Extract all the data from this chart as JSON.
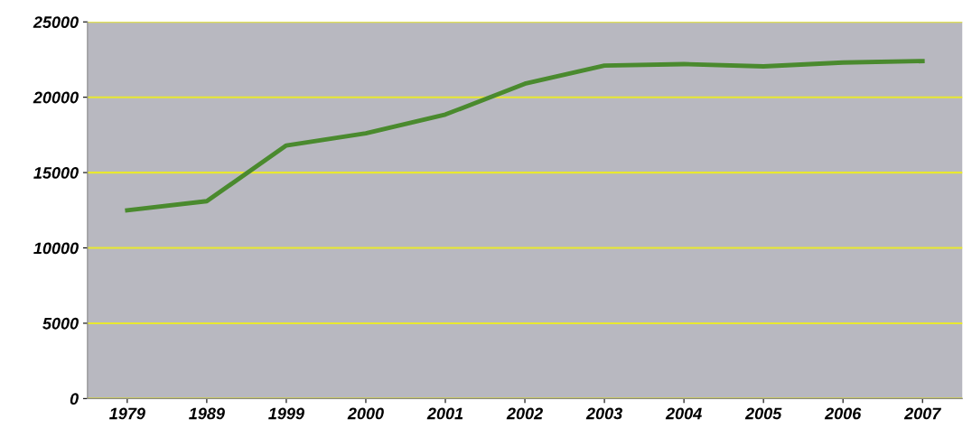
{
  "chart_data": {
    "type": "line",
    "categories": [
      "1979",
      "1989",
      "1999",
      "2000",
      "2001",
      "2002",
      "2003",
      "2004",
      "2005",
      "2006",
      "2007"
    ],
    "series": [
      {
        "color": "#4a8a2e",
        "values": [
          12500,
          13100,
          16800,
          17600,
          18850,
          20900,
          22100,
          22200,
          22050,
          22300,
          22400
        ]
      }
    ],
    "ylim": [
      0,
      25000
    ],
    "yticks": [
      0,
      5000,
      10000,
      15000,
      20000,
      25000
    ],
    "grid": "y",
    "marker": "none",
    "line_style": "solid"
  }
}
